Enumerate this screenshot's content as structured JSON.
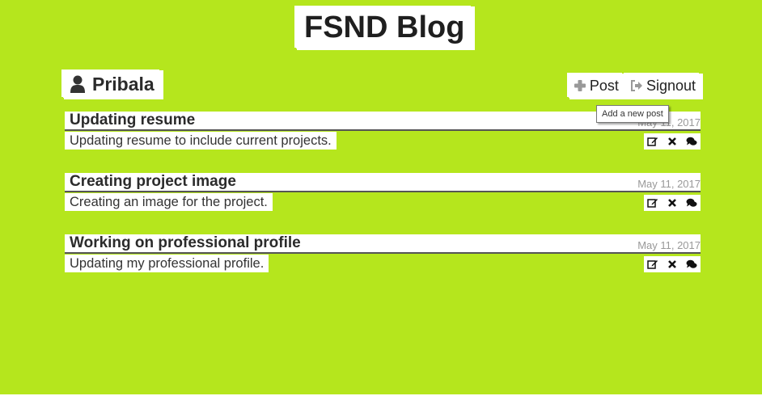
{
  "site": {
    "title": "FSND Blog"
  },
  "user": {
    "name": "Pribala",
    "icon": "user-icon"
  },
  "nav": {
    "post_label": "Post",
    "post_icon": "plus-icon",
    "signout_label": "Signout",
    "signout_icon": "sign-out-icon",
    "tooltip": "Add a new post"
  },
  "posts": [
    {
      "title": "Updating resume",
      "date": "May 11, 2017",
      "content": "Updating resume to include current projects."
    },
    {
      "title": "Creating project image",
      "date": "May 11, 2017",
      "content": "Creating an image for the project."
    },
    {
      "title": "Working on professional profile",
      "date": "May 11, 2017",
      "content": "Updating my professional profile."
    }
  ],
  "post_actions": [
    "edit-icon",
    "delete-icon",
    "comments-icon"
  ],
  "colors": {
    "background": "#b5e61d",
    "highlight": "#ffffff",
    "text": "#222222",
    "date": "#999999"
  }
}
